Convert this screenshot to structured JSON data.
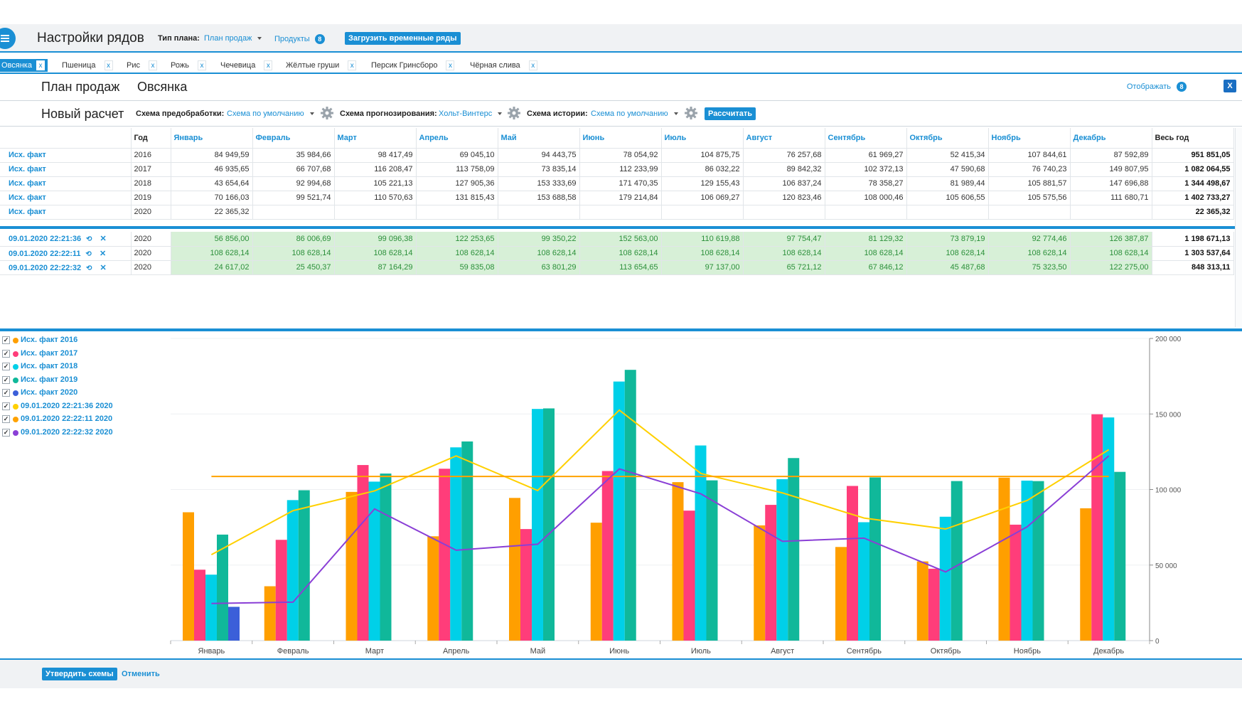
{
  "header": {
    "title": "Настройки рядов",
    "plan_type_label": "Тип плана:",
    "plan_type_value": "План продаж",
    "products_label": "Продукты",
    "products_count": "8",
    "load_button": "Загрузить временные ряды"
  },
  "tabs": [
    {
      "label": "Овсянка",
      "active": true
    },
    {
      "label": "Пшеница"
    },
    {
      "label": "Рис"
    },
    {
      "label": "Рожь"
    },
    {
      "label": "Чечевица"
    },
    {
      "label": "Жёлтые груши"
    },
    {
      "label": "Персик Гринсборо"
    },
    {
      "label": "Чёрная слива"
    }
  ],
  "tab_close": "x",
  "plan": {
    "name": "План продаж",
    "product": "Овсянка",
    "show_label": "Отображать",
    "show_count": "8",
    "excel_icon": "X"
  },
  "calc": {
    "title": "Новый расчет",
    "preprocess_label": "Схема предобработки:",
    "preprocess_value": "Схема по умолчанию",
    "forecast_label": "Схема прогнозирования:",
    "forecast_value": "Хольт-Винтерс",
    "history_label": "Схема истории:",
    "history_value": "Схема по умолчанию",
    "calc_button": "Рассчитать"
  },
  "table": {
    "columns": [
      "",
      "Год",
      "Январь",
      "Февраль",
      "Март",
      "Апрель",
      "Май",
      "Июнь",
      "Июль",
      "Август",
      "Сентябрь",
      "Октябрь",
      "Ноябрь",
      "Декабрь",
      "Весь год"
    ],
    "fact_rows": [
      {
        "label": "Исх. факт",
        "year": "2016",
        "values": [
          "84 949,59",
          "35 984,66",
          "98 417,49",
          "69 045,10",
          "94 443,75",
          "78 054,92",
          "104 875,75",
          "76 257,68",
          "61 969,27",
          "52 415,34",
          "107 844,61",
          "87 592,89"
        ],
        "total": "951 851,05"
      },
      {
        "label": "Исх. факт",
        "year": "2017",
        "values": [
          "46 935,65",
          "66 707,68",
          "116 208,47",
          "113 758,09",
          "73 835,14",
          "112 233,99",
          "86 032,22",
          "89 842,32",
          "102 372,13",
          "47 590,68",
          "76 740,23",
          "149 807,95"
        ],
        "total": "1 082 064,55"
      },
      {
        "label": "Исх. факт",
        "year": "2018",
        "values": [
          "43 654,64",
          "92 994,68",
          "105 221,13",
          "127 905,36",
          "153 333,69",
          "171 470,35",
          "129 155,43",
          "106 837,24",
          "78 358,27",
          "81 989,44",
          "105 881,57",
          "147 696,88"
        ],
        "total": "1 344 498,67"
      },
      {
        "label": "Исх. факт",
        "year": "2019",
        "values": [
          "70 166,03",
          "99 521,74",
          "110 570,63",
          "131 815,43",
          "153 688,58",
          "179 214,84",
          "106 069,27",
          "120 823,46",
          "108 000,46",
          "105 606,55",
          "105 575,56",
          "111 680,71"
        ],
        "total": "1 402 733,27"
      },
      {
        "label": "Исх. факт",
        "year": "2020",
        "values": [
          "22 365,32",
          "",
          "",
          "",
          "",
          "",
          "",
          "",
          "",
          "",
          "",
          ""
        ],
        "total": "22 365,32"
      }
    ],
    "forecast_rows": [
      {
        "label": "09.01.2020 22:21:36",
        "year": "2020",
        "values": [
          "56 856,00",
          "86 006,69",
          "99 096,38",
          "122 253,65",
          "99 350,22",
          "152 563,00",
          "110 619,88",
          "97 754,47",
          "81 129,32",
          "73 879,19",
          "92 774,46",
          "126 387,87"
        ],
        "total": "1 198 671,13"
      },
      {
        "label": "09.01.2020 22:22:11",
        "year": "2020",
        "values": [
          "108 628,14",
          "108 628,14",
          "108 628,14",
          "108 628,14",
          "108 628,14",
          "108 628,14",
          "108 628,14",
          "108 628,14",
          "108 628,14",
          "108 628,14",
          "108 628,14",
          "108 628,14"
        ],
        "total": "1 303 537,64"
      },
      {
        "label": "09.01.2020 22:22:32",
        "year": "2020",
        "values": [
          "24 617,02",
          "25 450,37",
          "87 164,29",
          "59 835,08",
          "63 801,29",
          "113 654,65",
          "97 137,00",
          "65 721,12",
          "67 846,12",
          "45 487,68",
          "75 323,50",
          "122 275,00"
        ],
        "total": "848 313,11"
      }
    ],
    "restore_icon": "⟲",
    "close_icon": "✕"
  },
  "legend": [
    {
      "label": "Исх. факт 2016",
      "color": "#ff9f00"
    },
    {
      "label": "Исх. факт 2017",
      "color": "#ff3d7a"
    },
    {
      "label": "Исх. факт 2018",
      "color": "#00d0e8"
    },
    {
      "label": "Исх. факт 2019",
      "color": "#10b89a"
    },
    {
      "label": "Исх. факт 2020",
      "color": "#3b5fd9"
    },
    {
      "label": "09.01.2020 22:21:36 2020",
      "color": "#ffd000"
    },
    {
      "label": "09.01.2020 22:22:11 2020",
      "color": "#ffa200"
    },
    {
      "label": "09.01.2020 22:22:32 2020",
      "color": "#8a3fd6"
    }
  ],
  "legend_check": "✓",
  "chart_data": {
    "type": "bar",
    "categories": [
      "Январь",
      "Февраль",
      "Март",
      "Апрель",
      "Май",
      "Июнь",
      "Июль",
      "Август",
      "Сентябрь",
      "Октябрь",
      "Ноябрь",
      "Декабрь"
    ],
    "ylim": [
      0,
      200000
    ],
    "yticks": [
      0,
      50000,
      100000,
      150000,
      200000
    ],
    "ytick_labels": [
      "0",
      "50 000",
      "100 000",
      "150 000",
      "200 000"
    ],
    "axis_position": "right",
    "series": [
      {
        "name": "Исх. факт 2016",
        "kind": "bar",
        "color": "#ff9f00",
        "values": [
          84949.59,
          35984.66,
          98417.49,
          69045.1,
          94443.75,
          78054.92,
          104875.75,
          76257.68,
          61969.27,
          52415.34,
          107844.61,
          87592.89
        ]
      },
      {
        "name": "Исх. факт 2017",
        "kind": "bar",
        "color": "#ff3d7a",
        "values": [
          46935.65,
          66707.68,
          116208.47,
          113758.09,
          73835.14,
          112233.99,
          86032.22,
          89842.32,
          102372.13,
          47590.68,
          76740.23,
          149807.95
        ]
      },
      {
        "name": "Исх. факт 2018",
        "kind": "bar",
        "color": "#00d0e8",
        "values": [
          43654.64,
          92994.68,
          105221.13,
          127905.36,
          153333.69,
          171470.35,
          129155.43,
          106837.24,
          78358.27,
          81989.44,
          105881.57,
          147696.88
        ]
      },
      {
        "name": "Исх. факт 2019",
        "kind": "bar",
        "color": "#10b89a",
        "values": [
          70166.03,
          99521.74,
          110570.63,
          131815.43,
          153688.58,
          179214.84,
          106069.27,
          120823.46,
          108000.46,
          105606.55,
          105575.56,
          111680.71
        ]
      },
      {
        "name": "Исх. факт 2020",
        "kind": "bar",
        "color": "#3b5fd9",
        "values": [
          22365.32,
          null,
          null,
          null,
          null,
          null,
          null,
          null,
          null,
          null,
          null,
          null
        ]
      },
      {
        "name": "09.01.2020 22:21:36 2020",
        "kind": "line",
        "color": "#ffd000",
        "values": [
          56856.0,
          86006.69,
          99096.38,
          122253.65,
          99350.22,
          152563.0,
          110619.88,
          97754.47,
          81129.32,
          73879.19,
          92774.46,
          126387.87
        ]
      },
      {
        "name": "09.01.2020 22:22:11 2020",
        "kind": "line",
        "color": "#ffa200",
        "values": [
          108628.14,
          108628.14,
          108628.14,
          108628.14,
          108628.14,
          108628.14,
          108628.14,
          108628.14,
          108628.14,
          108628.14,
          108628.14,
          108628.14
        ]
      },
      {
        "name": "09.01.2020 22:22:32 2020",
        "kind": "line",
        "color": "#8a3fd6",
        "values": [
          24617.02,
          25450.37,
          87164.29,
          59835.08,
          63801.29,
          113654.65,
          97137.0,
          65721.12,
          67846.12,
          45487.68,
          75323.5,
          122275.0
        ]
      }
    ]
  },
  "footer": {
    "approve_button": "Утвердить схемы",
    "cancel_link": "Отменить"
  },
  "colors": {
    "accent": "#1a8fd4",
    "forecast_bg": "#d7f0d7",
    "forecast_text": "#2b8f3a"
  }
}
